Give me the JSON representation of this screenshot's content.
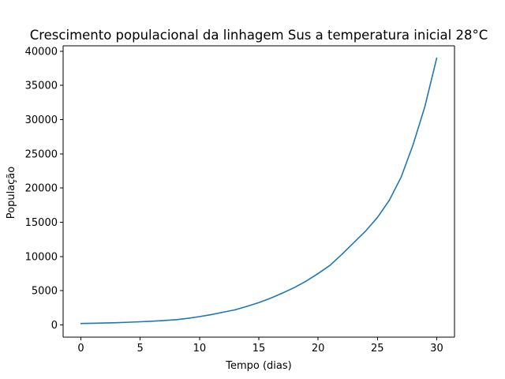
{
  "chart_data": {
    "type": "line",
    "title": "Crescimento populacional da linhagem Sus a temperatura inicial 28°C",
    "xlabel": "Tempo (dias)",
    "ylabel": "População",
    "xlim": [
      -1.5,
      31.5
    ],
    "ylim": [
      -1800,
      40800
    ],
    "xticks": [
      0,
      5,
      10,
      15,
      20,
      25,
      30
    ],
    "yticks": [
      0,
      5000,
      10000,
      15000,
      20000,
      25000,
      30000,
      35000,
      40000
    ],
    "grid": false,
    "legend": "none",
    "series": [
      {
        "color": "#1f77b4",
        "x": [
          0,
          1,
          2,
          3,
          4,
          5,
          6,
          7,
          8,
          9,
          10,
          11,
          12,
          13,
          14,
          15,
          16,
          17,
          18,
          19,
          20,
          21,
          22,
          23,
          24,
          25,
          26,
          27,
          28,
          29,
          30
        ],
        "values": [
          200,
          230,
          270,
          320,
          380,
          450,
          530,
          630,
          750,
          950,
          1200,
          1500,
          1850,
          2200,
          2700,
          3250,
          3900,
          4650,
          5450,
          6400,
          7500,
          8700,
          10300,
          12000,
          13700,
          15700,
          18200,
          21600,
          26300,
          31900,
          39000
        ]
      }
    ]
  }
}
